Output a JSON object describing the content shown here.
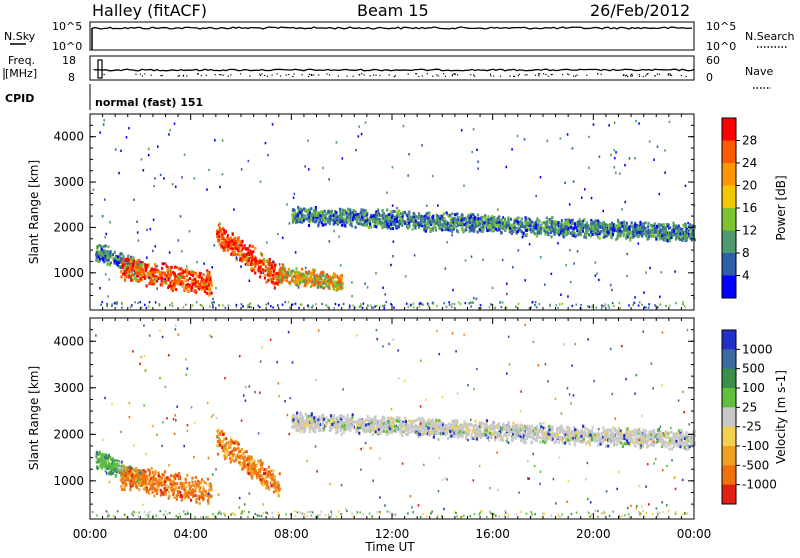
{
  "header": {
    "station": "Halley (fitACF)",
    "beam": "Beam 15",
    "date": "26/Feb/2012"
  },
  "strips": {
    "nsky_label": "N.Sky",
    "nsky_ticks": [
      "10^5",
      "10^0"
    ],
    "nsearch_label": "N.Search",
    "nsearch_ticks": [
      "10^5",
      "10^0"
    ],
    "freq_label_line1": "Freq.",
    "freq_label_line2": "[MHz]",
    "freq_ticks": [
      "18",
      "8"
    ],
    "nave_label": "Nave",
    "nave_ticks": [
      "60",
      "0"
    ],
    "cpid_label": "CPID",
    "cpid_value": "normal (fast) 151"
  },
  "chart_data": [
    {
      "type": "heatmap",
      "name": "power",
      "ylabel": "Slant Range [km]",
      "yticks": [
        "4000",
        "3000",
        "2000",
        "1000"
      ],
      "ylim": [
        180,
        4500
      ],
      "xlim": [
        0,
        24
      ],
      "colorbar": {
        "label": "Power [dB]",
        "ticks": [
          "28",
          "24",
          "20",
          "16",
          "12",
          "8",
          "4"
        ],
        "colors": [
          "#ff0000",
          "#ff5a00",
          "#ff9600",
          "#f2c800",
          "#7cc430",
          "#4f9a6e",
          "#2f5ea8",
          "#0000ff"
        ]
      },
      "features": [
        {
          "t_start": 0.2,
          "t_end": 2.0,
          "range_start": 1500,
          "range_end": 1100,
          "dominant": "green/blue"
        },
        {
          "t_start": 1.2,
          "t_end": 4.8,
          "range_start": 1100,
          "range_end": 800,
          "dominant": "red/orange"
        },
        {
          "t_start": 5.0,
          "t_end": 7.5,
          "range_start": 1900,
          "range_end": 900,
          "dominant": "red/orange"
        },
        {
          "t_start": 7.5,
          "t_end": 10.0,
          "range_start": 1000,
          "range_end": 800,
          "dominant": "orange/green"
        },
        {
          "t_start": 8.0,
          "t_end": 24.0,
          "range_start": 2300,
          "range_end": 1900,
          "dominant": "green/blue"
        }
      ]
    },
    {
      "type": "heatmap",
      "name": "velocity",
      "ylabel": "Slant Range [km]",
      "yticks": [
        "4000",
        "3000",
        "2000",
        "1000"
      ],
      "xlabel": "Time UT",
      "xticks": [
        "00:00",
        "04:00",
        "08:00",
        "12:00",
        "16:00",
        "20:00",
        "00:00"
      ],
      "ylim": [
        180,
        4500
      ],
      "xlim": [
        0,
        24
      ],
      "colorbar": {
        "label": "Velocity [m s-1]",
        "ticks": [
          "1000",
          "500",
          "100",
          "25",
          "-25",
          "-100",
          "-500",
          "-1000"
        ],
        "colors": [
          "#2030c8",
          "#3a6aa0",
          "#3c8f4a",
          "#5fbf3f",
          "#c8c8c8",
          "#f2d050",
          "#f0a020",
          "#f07010",
          "#e02010"
        ]
      },
      "features": [
        {
          "t_start": 0.2,
          "t_end": 2.0,
          "range_start": 1500,
          "range_end": 1100,
          "dominant": "green"
        },
        {
          "t_start": 1.2,
          "t_end": 4.8,
          "range_start": 1100,
          "range_end": 800,
          "dominant": "orange"
        },
        {
          "t_start": 5.0,
          "t_end": 7.5,
          "range_start": 1900,
          "range_end": 900,
          "dominant": "orange"
        },
        {
          "t_start": 8.0,
          "t_end": 24.0,
          "range_start": 2300,
          "range_end": 1900,
          "dominant": "gray"
        }
      ]
    }
  ]
}
